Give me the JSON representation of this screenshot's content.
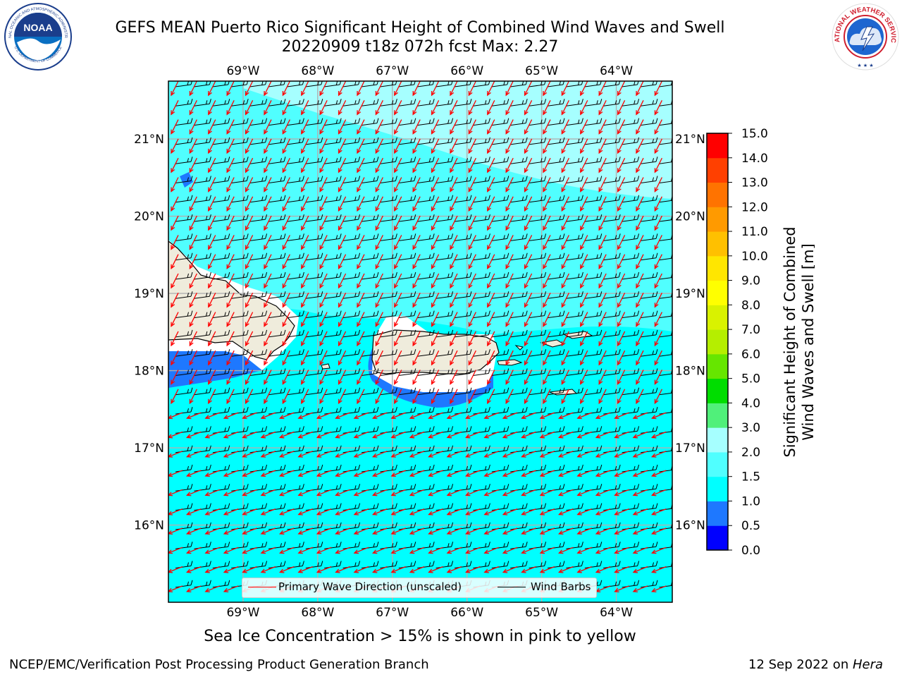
{
  "title": {
    "line1": "GEFS MEAN Puerto Rico Significant Height of Combined Wind Waves and Swell",
    "line2": "20220909 t18z 072h fcst   Max: 2.27"
  },
  "logos": {
    "left": "noaa-logo",
    "right": "nws-logo",
    "left_ring_text": "NATIONAL OCEANIC AND ATMOSPHERIC ADMINISTRATION",
    "left_ring_text_bottom": "U.S. DEPARTMENT OF COMMERCE",
    "left_center_text": "NOAA",
    "right_ring_text": "NATIONAL WEATHER SERVICE"
  },
  "map": {
    "lon_labels": [
      "69°W",
      "68°W",
      "67°W",
      "66°W",
      "65°W",
      "64°W"
    ],
    "lat_labels": [
      "21°N",
      "20°N",
      "19°N",
      "18°N",
      "17°N",
      "16°N"
    ],
    "lon_range": [
      -70.0,
      -63.25
    ],
    "lat_range": [
      15.0,
      21.75
    ],
    "colors": {
      "land": "#efecdc",
      "ocean_low": "#1e78ff",
      "ocean_mid": "#00ffff",
      "ocean_high": "#50ffff",
      "ocean_top": "#a6ffff",
      "wave_arrow": "#ff0000",
      "wind_barb": "#000000"
    }
  },
  "legend": {
    "wave_label": "Primary Wave Direction (unscaled)",
    "barb_label": "Wind Barbs"
  },
  "colorbar": {
    "title": "Significant Height of Combined Wind Waves and Swell [m]",
    "title_line1": "Significant Height of Combined",
    "title_line2": "Wind Waves and Swell [m]",
    "ticks": [
      "0.0",
      "0.5",
      "1.0",
      "1.5",
      "2.0",
      "3.0",
      "4.0",
      "5.0",
      "6.0",
      "7.0",
      "8.0",
      "9.0",
      "10.0",
      "11.0",
      "12.0",
      "13.0",
      "14.0",
      "15.0"
    ],
    "colors": [
      "#0000ff",
      "#1e78ff",
      "#00ffff",
      "#50ffff",
      "#a6ffff",
      "#50f07a",
      "#00dd00",
      "#66e600",
      "#b5ee00",
      "#d9f200",
      "#ffff00",
      "#ffe600",
      "#ffc000",
      "#ff9a00",
      "#ff7300",
      "#ff4000",
      "#ff0000"
    ]
  },
  "caption": "Sea Ice Concentration > 15% is shown in pink to yellow",
  "footer": {
    "left": "NCEP/EMC/Verification Post Processing Product Generation Branch",
    "right_prefix": "12 Sep 2022 on ",
    "right_host": "Hera"
  }
}
